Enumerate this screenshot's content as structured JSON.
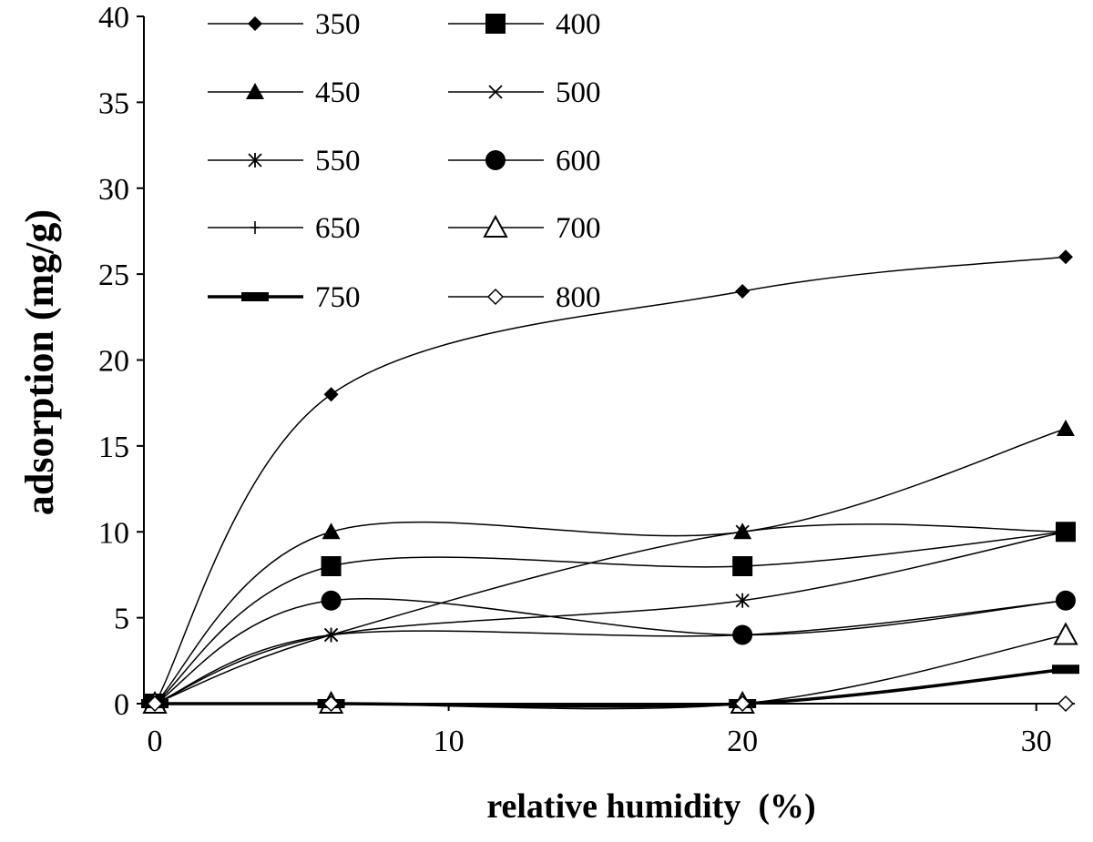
{
  "chart_data": {
    "type": "line",
    "title": "",
    "xlabel": "relative humidity  (%)",
    "ylabel": "adsorption (mg/g)",
    "xlim": [
      0,
      31
    ],
    "ylim": [
      0,
      40
    ],
    "xticks": [
      0,
      10,
      20,
      30
    ],
    "yticks": [
      0,
      5,
      10,
      15,
      20,
      25,
      30,
      35,
      40
    ],
    "grid": false,
    "legend": "top-left, two columns",
    "x": [
      0,
      6,
      20,
      31
    ],
    "series": [
      {
        "name": "350",
        "marker": "diamond-filled",
        "values": [
          0,
          18,
          24,
          26
        ]
      },
      {
        "name": "400",
        "marker": "square-filled",
        "values": [
          0,
          8,
          8,
          10
        ]
      },
      {
        "name": "450",
        "marker": "triangle-filled",
        "values": [
          0,
          10,
          10,
          16
        ]
      },
      {
        "name": "500",
        "marker": "x",
        "values": [
          0,
          4,
          10,
          10
        ]
      },
      {
        "name": "550",
        "marker": "star",
        "values": [
          0,
          4,
          6,
          10
        ]
      },
      {
        "name": "600",
        "marker": "circle-filled",
        "values": [
          0,
          6,
          4,
          6
        ]
      },
      {
        "name": "650",
        "marker": "plus",
        "values": [
          0,
          4,
          4,
          6
        ]
      },
      {
        "name": "700",
        "marker": "triangle-open",
        "values": [
          0,
          0,
          0,
          4
        ]
      },
      {
        "name": "750",
        "marker": "dash-thick",
        "values": [
          0,
          0,
          0,
          2
        ]
      },
      {
        "name": "800",
        "marker": "diamond-open",
        "values": [
          0,
          0,
          0,
          0
        ]
      }
    ]
  }
}
